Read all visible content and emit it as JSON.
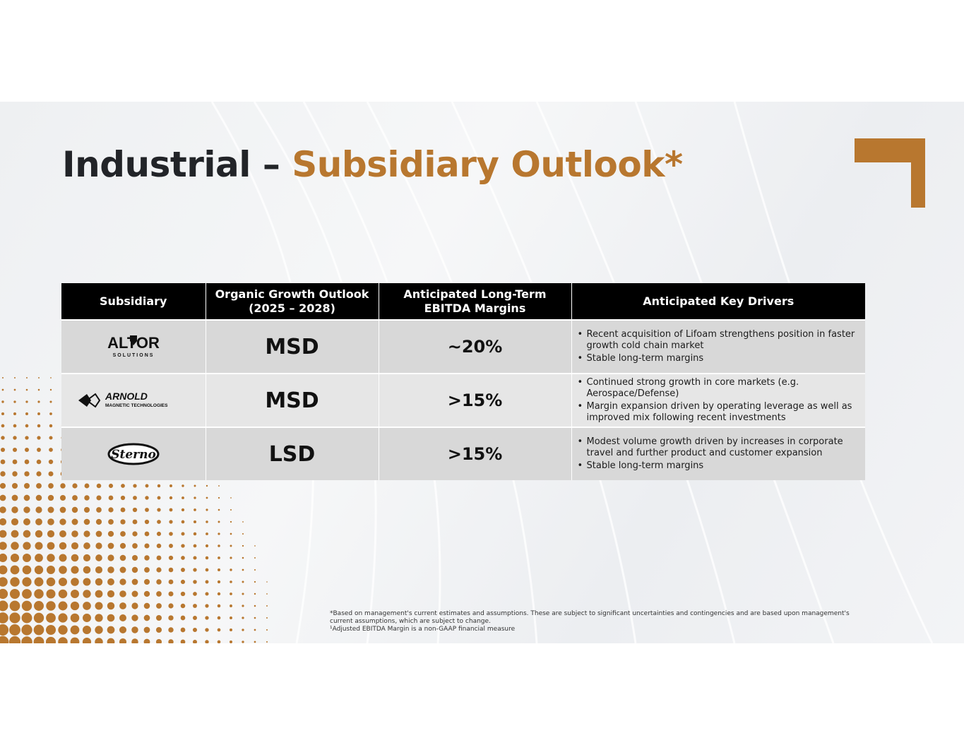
{
  "title": {
    "main": "Industrial –",
    "accent": "Subsidiary Outlook*"
  },
  "colors": {
    "accent": "#b8772f",
    "header_bg": "#000000",
    "title": "#222428"
  },
  "table": {
    "headers": [
      {
        "line1": "Subsidiary",
        "line2": ""
      },
      {
        "line1": "Organic Growth Outlook",
        "line2": "(2025 – 2028)"
      },
      {
        "line1": "Anticipated Long-Term",
        "line2": "EBITDA Margins"
      },
      {
        "line1": "Anticipated Key Drivers",
        "line2": ""
      }
    ],
    "rows": [
      {
        "logo": "altor-logo",
        "logo_text": {
          "main": "ALTOR",
          "sub": "SOLUTIONS"
        },
        "growth": "MSD",
        "margin": "~20%",
        "drivers": [
          "Recent acquisition of Lifoam strengthens position in faster growth cold chain market",
          "Stable long-term margins"
        ]
      },
      {
        "logo": "arnold-logo",
        "logo_text": {
          "main": "ARNOLD",
          "sub": "MAGNETIC TECHNOLOGIES"
        },
        "growth": "MSD",
        "margin": ">15%",
        "drivers": [
          "Continued strong growth in core markets (e.g. Aerospace/Defense)",
          "Margin expansion driven by operating leverage as well as improved mix following recent investments"
        ]
      },
      {
        "logo": "sterno-logo",
        "logo_text": {
          "main": "Sterno",
          "sub": ""
        },
        "growth": "LSD",
        "margin": ">15%",
        "drivers": [
          "Modest volume growth driven by increases in corporate travel and further product and customer expansion",
          "Stable long-term margins"
        ]
      }
    ]
  },
  "footnotes": [
    "*Based on management's current estimates and assumptions. These are subject to significant uncertainties and contingencies and are based upon management's current assumptions, which are subject to change.",
    "¹Adjusted EBITDA Margin is a non-GAAP financial measure"
  ]
}
